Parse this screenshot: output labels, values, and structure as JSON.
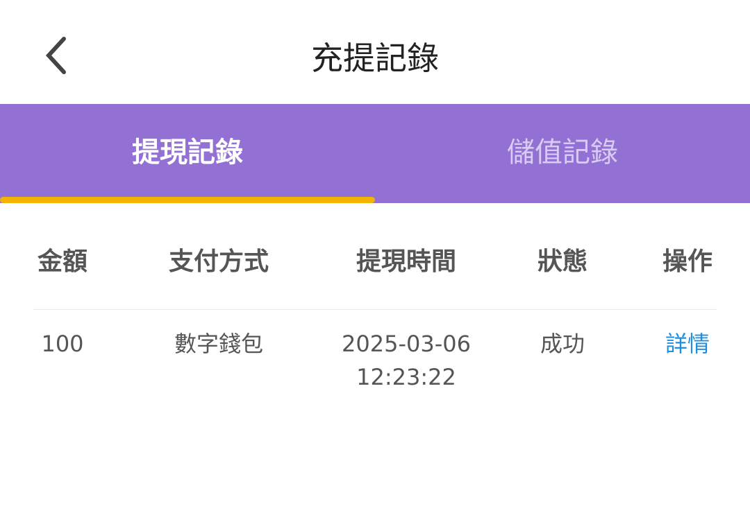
{
  "header": {
    "title": "充提記錄",
    "back_icon": "chevron-left-icon"
  },
  "tabs": [
    {
      "label": "提現記錄",
      "active": true
    },
    {
      "label": "儲值記錄",
      "active": false
    }
  ],
  "colors": {
    "tab_bg": "#9370d4",
    "indicator": "#f2b400",
    "link": "#1e8fe0"
  },
  "table": {
    "headers": [
      "金額",
      "支付方式",
      "提現時間",
      "狀態",
      "操作"
    ],
    "rows": [
      {
        "amount": "100",
        "method": "數字錢包",
        "date": "2025-03-06",
        "time": "12:23:22",
        "status": "成功",
        "action": "詳情"
      }
    ]
  }
}
